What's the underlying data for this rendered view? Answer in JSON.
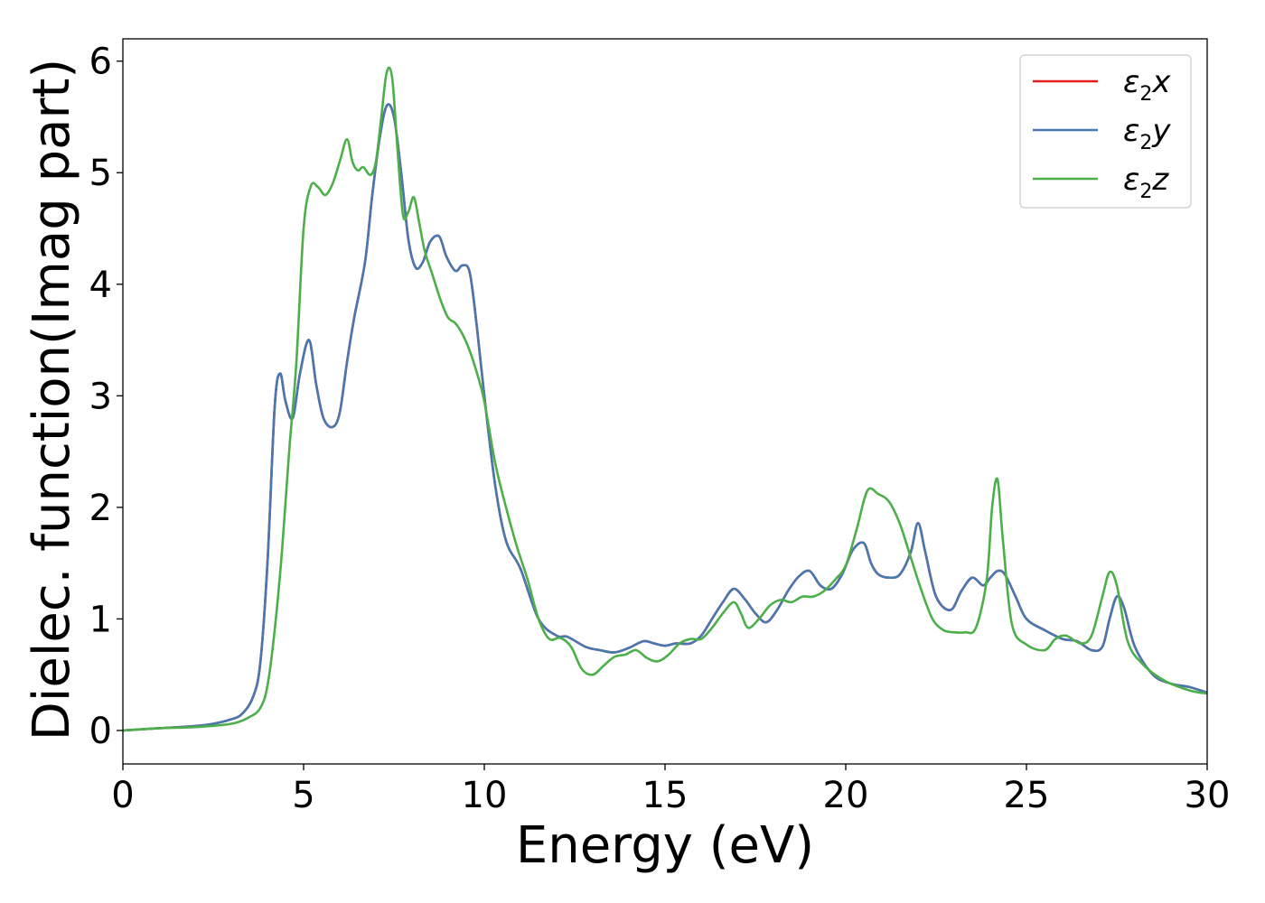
{
  "chart_data": {
    "type": "line",
    "xlabel": "Energy (eV)",
    "ylabel": "Dielec. function(Imag part)",
    "xlim": [
      0,
      30
    ],
    "ylim": [
      -0.3,
      6.2
    ],
    "xticks": [
      0,
      5,
      10,
      15,
      20,
      25,
      30
    ],
    "yticks": [
      0,
      1,
      2,
      3,
      4,
      5,
      6
    ],
    "grid": false,
    "legend_position": "top-right",
    "series": [
      {
        "name": "ε2x",
        "base": "ε",
        "sub": "2",
        "suffix": "x",
        "color": "#e41a1c",
        "x": [
          0,
          1,
          2,
          2.5,
          3,
          3.3,
          3.6,
          3.8,
          4.0,
          4.2,
          4.35,
          4.5,
          4.7,
          4.9,
          5.15,
          5.35,
          5.55,
          5.8,
          6.0,
          6.2,
          6.4,
          6.7,
          6.9,
          7.1,
          7.3,
          7.5,
          7.7,
          7.9,
          8.1,
          8.3,
          8.5,
          8.75,
          8.95,
          9.2,
          9.4,
          9.6,
          9.8,
          10.0,
          10.3,
          10.6,
          11.0,
          11.5,
          12.0,
          12.3,
          12.8,
          13.2,
          13.6,
          14.0,
          14.4,
          14.7,
          15.0,
          15.3,
          15.7,
          16.0,
          16.3,
          16.6,
          16.9,
          17.2,
          17.5,
          17.8,
          18.1,
          18.4,
          18.7,
          19.0,
          19.3,
          19.6,
          19.9,
          20.2,
          20.5,
          20.7,
          20.9,
          21.2,
          21.5,
          21.8,
          22.0,
          22.2,
          22.5,
          22.9,
          23.2,
          23.5,
          23.8,
          24.0,
          24.2,
          24.4,
          24.7,
          25.0,
          25.5,
          26.0,
          26.4,
          26.8,
          27.1,
          27.3,
          27.5,
          27.7,
          28.0,
          28.5,
          29.0,
          29.5,
          30.0
        ],
        "y": [
          0.0,
          0.02,
          0.04,
          0.06,
          0.1,
          0.15,
          0.3,
          0.6,
          1.5,
          2.9,
          3.2,
          2.95,
          2.8,
          3.2,
          3.5,
          3.1,
          2.8,
          2.72,
          2.85,
          3.3,
          3.7,
          4.2,
          4.8,
          5.3,
          5.6,
          5.5,
          5.0,
          4.4,
          4.15,
          4.2,
          4.38,
          4.43,
          4.25,
          4.12,
          4.17,
          4.1,
          3.6,
          3.0,
          2.2,
          1.7,
          1.45,
          1.0,
          0.85,
          0.84,
          0.75,
          0.72,
          0.7,
          0.74,
          0.8,
          0.78,
          0.76,
          0.78,
          0.78,
          0.85,
          1.0,
          1.15,
          1.27,
          1.18,
          1.05,
          0.97,
          1.08,
          1.25,
          1.38,
          1.43,
          1.3,
          1.27,
          1.4,
          1.62,
          1.68,
          1.5,
          1.4,
          1.37,
          1.4,
          1.6,
          1.86,
          1.6,
          1.2,
          1.08,
          1.25,
          1.37,
          1.3,
          1.37,
          1.43,
          1.4,
          1.2,
          1.0,
          0.9,
          0.82,
          0.8,
          0.72,
          0.75,
          1.0,
          1.2,
          1.1,
          0.75,
          0.5,
          0.42,
          0.39,
          0.34
        ]
      },
      {
        "name": "ε2y",
        "base": "ε",
        "sub": "2",
        "suffix": "y",
        "color": "#4878b0",
        "x": [
          0,
          1,
          2,
          2.5,
          3,
          3.3,
          3.6,
          3.8,
          4.0,
          4.2,
          4.35,
          4.5,
          4.7,
          4.9,
          5.15,
          5.35,
          5.55,
          5.8,
          6.0,
          6.2,
          6.4,
          6.7,
          6.9,
          7.1,
          7.3,
          7.5,
          7.7,
          7.9,
          8.1,
          8.3,
          8.5,
          8.75,
          8.95,
          9.2,
          9.4,
          9.6,
          9.8,
          10.0,
          10.3,
          10.6,
          11.0,
          11.5,
          12.0,
          12.3,
          12.8,
          13.2,
          13.6,
          14.0,
          14.4,
          14.7,
          15.0,
          15.3,
          15.7,
          16.0,
          16.3,
          16.6,
          16.9,
          17.2,
          17.5,
          17.8,
          18.1,
          18.4,
          18.7,
          19.0,
          19.3,
          19.6,
          19.9,
          20.2,
          20.5,
          20.7,
          20.9,
          21.2,
          21.5,
          21.8,
          22.0,
          22.2,
          22.5,
          22.9,
          23.2,
          23.5,
          23.8,
          24.0,
          24.2,
          24.4,
          24.7,
          25.0,
          25.5,
          26.0,
          26.4,
          26.8,
          27.1,
          27.3,
          27.5,
          27.7,
          28.0,
          28.5,
          29.0,
          29.5,
          30.0
        ],
        "y": [
          0.0,
          0.02,
          0.04,
          0.06,
          0.1,
          0.15,
          0.3,
          0.6,
          1.5,
          2.9,
          3.2,
          2.95,
          2.8,
          3.2,
          3.5,
          3.1,
          2.8,
          2.72,
          2.85,
          3.3,
          3.7,
          4.2,
          4.8,
          5.3,
          5.6,
          5.5,
          5.0,
          4.4,
          4.15,
          4.2,
          4.38,
          4.43,
          4.25,
          4.12,
          4.17,
          4.1,
          3.6,
          3.0,
          2.2,
          1.7,
          1.45,
          1.0,
          0.85,
          0.84,
          0.75,
          0.72,
          0.7,
          0.74,
          0.8,
          0.78,
          0.76,
          0.78,
          0.78,
          0.85,
          1.0,
          1.15,
          1.27,
          1.18,
          1.05,
          0.97,
          1.08,
          1.25,
          1.38,
          1.43,
          1.3,
          1.27,
          1.4,
          1.62,
          1.68,
          1.5,
          1.4,
          1.37,
          1.4,
          1.6,
          1.86,
          1.6,
          1.2,
          1.08,
          1.25,
          1.37,
          1.3,
          1.37,
          1.43,
          1.4,
          1.2,
          1.0,
          0.9,
          0.82,
          0.8,
          0.72,
          0.75,
          1.0,
          1.2,
          1.1,
          0.75,
          0.5,
          0.42,
          0.39,
          0.34
        ]
      },
      {
        "name": "ε2z",
        "base": "ε",
        "sub": "2",
        "suffix": "z",
        "color": "#4daf4a",
        "x": [
          0,
          1,
          2,
          3,
          3.5,
          3.8,
          4.0,
          4.2,
          4.4,
          4.6,
          4.8,
          5.0,
          5.2,
          5.4,
          5.6,
          5.8,
          6.0,
          6.2,
          6.35,
          6.5,
          6.65,
          6.85,
          7.0,
          7.15,
          7.3,
          7.45,
          7.6,
          7.75,
          7.9,
          8.05,
          8.2,
          8.35,
          8.55,
          8.8,
          9.0,
          9.2,
          9.4,
          9.6,
          9.8,
          10.0,
          10.3,
          10.6,
          10.9,
          11.2,
          11.5,
          11.8,
          12.1,
          12.4,
          12.7,
          13.0,
          13.3,
          13.6,
          13.9,
          14.2,
          14.5,
          14.8,
          15.1,
          15.4,
          15.7,
          16.0,
          16.3,
          16.6,
          16.9,
          17.1,
          17.3,
          17.6,
          17.9,
          18.2,
          18.5,
          18.8,
          19.1,
          19.4,
          19.7,
          20.0,
          20.3,
          20.6,
          20.9,
          21.2,
          21.5,
          21.8,
          22.1,
          22.4,
          22.7,
          23.0,
          23.3,
          23.6,
          23.9,
          24.05,
          24.2,
          24.35,
          24.6,
          25.0,
          25.5,
          25.8,
          26.1,
          26.5,
          26.8,
          27.1,
          27.3,
          27.5,
          27.8,
          28.2,
          28.8,
          29.5,
          30.0
        ],
        "y": [
          0.0,
          0.02,
          0.03,
          0.06,
          0.12,
          0.2,
          0.4,
          0.9,
          1.6,
          2.5,
          3.3,
          4.5,
          4.88,
          4.87,
          4.8,
          4.9,
          5.1,
          5.3,
          5.1,
          5.02,
          5.05,
          4.98,
          5.1,
          5.5,
          5.9,
          5.85,
          5.2,
          4.62,
          4.65,
          4.78,
          4.55,
          4.3,
          4.1,
          3.85,
          3.7,
          3.65,
          3.55,
          3.4,
          3.2,
          2.95,
          2.4,
          2.0,
          1.65,
          1.35,
          1.0,
          0.82,
          0.83,
          0.75,
          0.55,
          0.5,
          0.58,
          0.66,
          0.68,
          0.72,
          0.65,
          0.62,
          0.68,
          0.78,
          0.82,
          0.82,
          0.92,
          1.05,
          1.15,
          1.05,
          0.92,
          1.0,
          1.12,
          1.17,
          1.15,
          1.2,
          1.2,
          1.25,
          1.35,
          1.48,
          1.8,
          2.15,
          2.12,
          2.05,
          1.85,
          1.55,
          1.25,
          1.0,
          0.9,
          0.88,
          0.88,
          0.92,
          1.35,
          2.0,
          2.25,
          1.7,
          0.95,
          0.77,
          0.72,
          0.82,
          0.85,
          0.78,
          0.85,
          1.2,
          1.42,
          1.3,
          0.8,
          0.6,
          0.45,
          0.36,
          0.33
        ]
      }
    ]
  }
}
